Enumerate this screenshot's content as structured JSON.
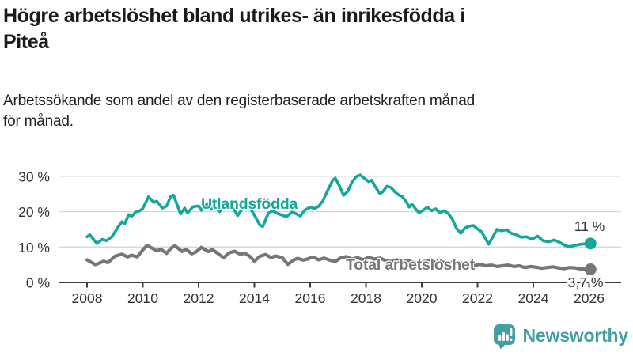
{
  "header": {
    "title_line1": "Högre arbetslöshet bland utrikes- än inrikesfödda i",
    "title_line2": "Piteå",
    "subtitle_line1": "Arbetssökande som andel av den registerbaserade arbetskraften månad",
    "subtitle_line2": "för månad."
  },
  "chart_data": {
    "type": "line",
    "x_axis": {
      "ticks": [
        2008,
        2010,
        2012,
        2014,
        2016,
        2018,
        2020,
        2022,
        2024,
        2026
      ],
      "tick_labels": [
        "2008",
        "2010",
        "2012",
        "2014",
        "2016",
        "2018",
        "2020",
        "2022",
        "2024",
        "2026"
      ],
      "range": [
        2007.0,
        2027.1
      ]
    },
    "y_axis": {
      "ticks": [
        0,
        10,
        20,
        30
      ],
      "tick_labels": [
        "0 %",
        "10 %",
        "20 %",
        "30 %"
      ],
      "range": [
        0,
        32
      ],
      "grid": true
    },
    "axis_color": "#3c3c3c",
    "grid_color": "#d8d8d8",
    "text_color": "#333333",
    "series": [
      {
        "name": "Total arbetslöshet",
        "color": "#76767a",
        "end_label": "3,7 %",
        "end_value": 3.7,
        "points": [
          [
            2008.0,
            6.4
          ],
          [
            2008.3,
            5.0
          ],
          [
            2008.6,
            6.0
          ],
          [
            2008.75,
            5.6
          ],
          [
            2009.0,
            7.4
          ],
          [
            2009.25,
            8.0
          ],
          [
            2009.45,
            7.2
          ],
          [
            2009.6,
            7.7
          ],
          [
            2009.8,
            7.2
          ],
          [
            2010.0,
            9.2
          ],
          [
            2010.15,
            10.5
          ],
          [
            2010.35,
            9.6
          ],
          [
            2010.5,
            8.9
          ],
          [
            2010.65,
            9.4
          ],
          [
            2010.85,
            8.2
          ],
          [
            2011.0,
            9.6
          ],
          [
            2011.15,
            10.4
          ],
          [
            2011.4,
            8.8
          ],
          [
            2011.55,
            9.4
          ],
          [
            2011.75,
            8.1
          ],
          [
            2011.9,
            8.6
          ],
          [
            2012.1,
            9.9
          ],
          [
            2012.35,
            8.7
          ],
          [
            2012.5,
            9.3
          ],
          [
            2012.7,
            8.1
          ],
          [
            2012.9,
            7.0
          ],
          [
            2013.1,
            8.4
          ],
          [
            2013.3,
            8.8
          ],
          [
            2013.5,
            7.9
          ],
          [
            2013.65,
            8.3
          ],
          [
            2013.85,
            7.3
          ],
          [
            2014.0,
            6.0
          ],
          [
            2014.2,
            7.4
          ],
          [
            2014.4,
            7.9
          ],
          [
            2014.6,
            7.0
          ],
          [
            2014.75,
            7.5
          ],
          [
            2015.0,
            7.0
          ],
          [
            2015.2,
            5.1
          ],
          [
            2015.4,
            6.3
          ],
          [
            2015.55,
            6.8
          ],
          [
            2015.75,
            6.3
          ],
          [
            2015.9,
            6.6
          ],
          [
            2016.1,
            7.2
          ],
          [
            2016.3,
            6.4
          ],
          [
            2016.5,
            6.9
          ],
          [
            2016.7,
            6.3
          ],
          [
            2016.9,
            5.9
          ],
          [
            2017.1,
            7.0
          ],
          [
            2017.3,
            7.3
          ],
          [
            2017.5,
            6.6
          ],
          [
            2017.7,
            7.0
          ],
          [
            2017.9,
            6.4
          ],
          [
            2018.1,
            7.1
          ],
          [
            2018.3,
            6.6
          ],
          [
            2018.5,
            6.9
          ],
          [
            2018.7,
            6.2
          ],
          [
            2018.9,
            5.9
          ],
          [
            2019.1,
            6.4
          ],
          [
            2019.3,
            6.0
          ],
          [
            2019.5,
            6.2
          ],
          [
            2019.7,
            5.7
          ],
          [
            2019.9,
            5.5
          ],
          [
            2020.1,
            5.9
          ],
          [
            2020.3,
            6.1
          ],
          [
            2020.5,
            5.7
          ],
          [
            2020.7,
            5.9
          ],
          [
            2020.9,
            5.4
          ],
          [
            2021.1,
            5.7
          ],
          [
            2021.3,
            5.3
          ],
          [
            2021.5,
            5.5
          ],
          [
            2021.7,
            5.0
          ],
          [
            2021.9,
            4.8
          ],
          [
            2022.1,
            5.1
          ],
          [
            2022.3,
            4.7
          ],
          [
            2022.5,
            4.9
          ],
          [
            2022.7,
            4.5
          ],
          [
            2022.9,
            4.7
          ],
          [
            2023.1,
            4.9
          ],
          [
            2023.3,
            4.5
          ],
          [
            2023.5,
            4.7
          ],
          [
            2023.7,
            4.2
          ],
          [
            2023.9,
            4.5
          ],
          [
            2024.1,
            4.3
          ],
          [
            2024.3,
            4.0
          ],
          [
            2024.5,
            4.2
          ],
          [
            2024.7,
            4.4
          ],
          [
            2024.9,
            4.1
          ],
          [
            2025.1,
            3.9
          ],
          [
            2025.3,
            4.2
          ],
          [
            2025.5,
            4.1
          ],
          [
            2025.7,
            3.8
          ],
          [
            2025.9,
            3.7
          ],
          [
            2026.05,
            3.7
          ]
        ]
      },
      {
        "name": "Utlandsfödda",
        "color": "#15a79a",
        "end_label": "11 %",
        "end_value": 11,
        "points": [
          [
            2008.0,
            12.9
          ],
          [
            2008.1,
            13.5
          ],
          [
            2008.35,
            11.0
          ],
          [
            2008.55,
            12.2
          ],
          [
            2008.7,
            11.8
          ],
          [
            2008.9,
            13.0
          ],
          [
            2009.1,
            15.5
          ],
          [
            2009.25,
            17.2
          ],
          [
            2009.35,
            16.6
          ],
          [
            2009.5,
            19.2
          ],
          [
            2009.6,
            18.7
          ],
          [
            2009.75,
            19.9
          ],
          [
            2009.9,
            20.3
          ],
          [
            2010.0,
            20.9
          ],
          [
            2010.2,
            24.2
          ],
          [
            2010.4,
            22.6
          ],
          [
            2010.5,
            23.0
          ],
          [
            2010.7,
            21.0
          ],
          [
            2010.85,
            21.6
          ],
          [
            2011.0,
            24.3
          ],
          [
            2011.1,
            24.7
          ],
          [
            2011.35,
            19.4
          ],
          [
            2011.5,
            21.0
          ],
          [
            2011.6,
            19.6
          ],
          [
            2011.8,
            21.4
          ],
          [
            2012.0,
            21.6
          ],
          [
            2012.1,
            20.4
          ],
          [
            2012.3,
            22.3
          ],
          [
            2012.45,
            20.7
          ],
          [
            2012.55,
            21.8
          ],
          [
            2012.75,
            20.0
          ],
          [
            2012.9,
            21.6
          ],
          [
            2013.1,
            22.1
          ],
          [
            2013.3,
            20.2
          ],
          [
            2013.4,
            18.9
          ],
          [
            2013.55,
            20.6
          ],
          [
            2013.7,
            21.7
          ],
          [
            2013.85,
            21.0
          ],
          [
            2014.0,
            19.0
          ],
          [
            2014.2,
            16.2
          ],
          [
            2014.3,
            15.8
          ],
          [
            2014.5,
            19.6
          ],
          [
            2014.65,
            20.2
          ],
          [
            2014.8,
            19.6
          ],
          [
            2015.0,
            19.0
          ],
          [
            2015.15,
            18.6
          ],
          [
            2015.35,
            19.9
          ],
          [
            2015.5,
            19.4
          ],
          [
            2015.65,
            18.8
          ],
          [
            2015.8,
            20.4
          ],
          [
            2016.0,
            21.3
          ],
          [
            2016.15,
            20.9
          ],
          [
            2016.3,
            21.5
          ],
          [
            2016.45,
            23.0
          ],
          [
            2016.6,
            25.5
          ],
          [
            2016.8,
            28.8
          ],
          [
            2016.9,
            29.5
          ],
          [
            2017.05,
            27.3
          ],
          [
            2017.2,
            24.6
          ],
          [
            2017.35,
            25.8
          ],
          [
            2017.5,
            28.4
          ],
          [
            2017.65,
            29.9
          ],
          [
            2017.8,
            30.4
          ],
          [
            2017.95,
            29.4
          ],
          [
            2018.1,
            28.5
          ],
          [
            2018.2,
            28.9
          ],
          [
            2018.35,
            26.9
          ],
          [
            2018.5,
            25.1
          ],
          [
            2018.6,
            25.6
          ],
          [
            2018.75,
            27.2
          ],
          [
            2018.9,
            26.8
          ],
          [
            2019.05,
            25.5
          ],
          [
            2019.2,
            24.6
          ],
          [
            2019.3,
            24.3
          ],
          [
            2019.45,
            22.8
          ],
          [
            2019.55,
            21.3
          ],
          [
            2019.65,
            22.1
          ],
          [
            2019.8,
            20.6
          ],
          [
            2019.9,
            19.7
          ],
          [
            2020.05,
            20.4
          ],
          [
            2020.2,
            21.3
          ],
          [
            2020.35,
            20.3
          ],
          [
            2020.5,
            20.8
          ],
          [
            2020.65,
            19.7
          ],
          [
            2020.8,
            20.3
          ],
          [
            2020.95,
            19.5
          ],
          [
            2021.1,
            17.8
          ],
          [
            2021.25,
            15.2
          ],
          [
            2021.4,
            13.9
          ],
          [
            2021.55,
            15.4
          ],
          [
            2021.7,
            15.9
          ],
          [
            2021.85,
            16.1
          ],
          [
            2022.0,
            15.1
          ],
          [
            2022.15,
            14.3
          ],
          [
            2022.4,
            10.8
          ],
          [
            2022.7,
            15.0
          ],
          [
            2022.85,
            14.6
          ],
          [
            2023.05,
            14.9
          ],
          [
            2023.2,
            13.9
          ],
          [
            2023.4,
            13.5
          ],
          [
            2023.55,
            12.8
          ],
          [
            2023.75,
            12.9
          ],
          [
            2023.95,
            12.2
          ],
          [
            2024.15,
            13.1
          ],
          [
            2024.35,
            11.8
          ],
          [
            2024.55,
            11.5
          ],
          [
            2024.75,
            12.0
          ],
          [
            2024.95,
            11.3
          ],
          [
            2025.15,
            10.4
          ],
          [
            2025.3,
            10.1
          ],
          [
            2025.5,
            10.5
          ],
          [
            2025.7,
            10.8
          ],
          [
            2025.9,
            10.9
          ],
          [
            2026.05,
            11.0
          ]
        ]
      }
    ]
  },
  "footer": {
    "brand": "Newsworthy",
    "brand_color": "#43a0a0",
    "logo_icon": "bar-chart-speech-bubble-icon"
  }
}
